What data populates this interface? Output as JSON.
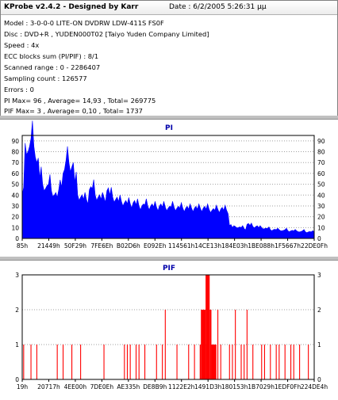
{
  "header": {
    "title": "KProbe v2.4.2 - Designed by Karr",
    "date": "Date : 6/2/2005 5:26:31 μμ"
  },
  "info_lines": [
    "Model : 3-0-0-0 LITE-ON DVDRW LDW-411S   FS0F",
    "Disc : DVD+R , YUDEN000T02 [Taiyo Yuden Company Limited]",
    "Speed : 4x",
    "ECC blocks sum (PI/PIF) : 8/1",
    "Scanned range : 0 - 2286407",
    "Sampling count : 126577",
    "Errors : 0",
    "PI Max= 96 , Average= 14,93 , Total= 269775",
    "PIF Max= 3 , Average= 0,10 , Total= 1737"
  ],
  "chart_data": [
    {
      "type": "area",
      "title": "PI",
      "color": "#0000ff",
      "ylim": [
        0,
        95
      ],
      "yticks": [
        "0",
        "10",
        "20",
        "30",
        "40",
        "50",
        "60",
        "70",
        "80",
        "90"
      ],
      "xticks": [
        "85h",
        "21449h",
        "50F29h",
        "7FE6Eh",
        "B02D6h",
        "E092Eh",
        "114561h",
        "14CE13h",
        "184E03h",
        "1BE088h",
        "1F5667h",
        "22DE0Fh"
      ],
      "grid": true,
      "profile": [
        [
          0,
          40
        ],
        [
          1,
          88
        ],
        [
          2,
          80
        ],
        [
          3,
          92
        ],
        [
          4,
          85
        ],
        [
          5,
          70
        ],
        [
          6,
          56
        ],
        [
          7,
          50
        ],
        [
          8,
          46
        ],
        [
          9,
          50
        ],
        [
          10,
          44
        ],
        [
          11,
          40
        ],
        [
          12,
          38
        ],
        [
          13,
          54
        ],
        [
          14,
          60
        ],
        [
          15,
          72
        ],
        [
          16,
          70
        ],
        [
          17,
          66
        ],
        [
          18,
          52
        ],
        [
          19,
          40
        ],
        [
          20,
          38
        ],
        [
          21,
          36
        ],
        [
          22,
          36
        ],
        [
          23,
          45
        ],
        [
          24,
          46
        ],
        [
          25,
          40
        ],
        [
          26,
          38
        ],
        [
          27,
          36
        ],
        [
          28,
          38
        ],
        [
          29,
          44
        ],
        [
          30,
          40
        ],
        [
          31,
          38
        ],
        [
          32,
          36
        ],
        [
          33,
          34
        ],
        [
          34,
          34
        ],
        [
          35,
          33
        ],
        [
          36,
          32
        ],
        [
          37,
          32
        ],
        [
          38,
          33
        ],
        [
          39,
          31
        ],
        [
          40,
          30
        ],
        [
          41,
          30
        ],
        [
          42,
          31
        ],
        [
          43,
          30
        ],
        [
          44,
          30
        ],
        [
          45,
          29
        ],
        [
          46,
          29
        ],
        [
          47,
          30
        ],
        [
          48,
          29
        ],
        [
          49,
          29
        ],
        [
          50,
          28
        ],
        [
          51,
          29
        ],
        [
          52,
          29
        ],
        [
          53,
          28
        ],
        [
          54,
          28
        ],
        [
          55,
          28
        ],
        [
          56,
          28
        ],
        [
          57,
          27
        ],
        [
          58,
          28
        ],
        [
          59,
          28
        ],
        [
          60,
          27
        ],
        [
          61,
          28
        ],
        [
          62,
          28
        ],
        [
          63,
          27
        ],
        [
          64,
          27
        ],
        [
          65,
          26
        ],
        [
          66,
          26
        ],
        [
          67,
          27
        ],
        [
          68,
          27
        ],
        [
          69,
          26
        ],
        [
          70,
          26
        ],
        [
          71,
          12
        ],
        [
          72,
          10
        ],
        [
          73,
          11
        ],
        [
          74,
          10
        ],
        [
          75,
          10
        ],
        [
          76,
          9
        ],
        [
          77,
          13
        ],
        [
          78,
          12
        ],
        [
          79,
          11
        ],
        [
          80,
          11
        ],
        [
          81,
          10
        ],
        [
          82,
          10
        ],
        [
          83,
          9
        ],
        [
          84,
          9
        ],
        [
          85,
          8
        ],
        [
          86,
          8
        ],
        [
          87,
          8
        ],
        [
          88,
          8
        ],
        [
          89,
          7
        ],
        [
          90,
          8
        ],
        [
          91,
          7
        ],
        [
          92,
          7
        ],
        [
          93,
          7
        ],
        [
          94,
          7
        ],
        [
          95,
          6
        ],
        [
          96,
          7
        ],
        [
          97,
          6
        ],
        [
          98,
          6
        ],
        [
          99,
          6
        ],
        [
          100,
          6
        ]
      ]
    },
    {
      "type": "bar",
      "title": "PIF",
      "color": "#ff0000",
      "ylim": [
        0,
        3
      ],
      "yticks": [
        "0",
        "1",
        "2",
        "3"
      ],
      "xticks": [
        "19h",
        "20717h",
        "4EE00h",
        "7DE0Eh",
        "AE335h",
        "DE8B9h",
        "1122E2h",
        "1491D3h",
        "180153h",
        "1B7029h",
        "1EDF0Fh",
        "224DE4h"
      ],
      "grid": true,
      "bars": [
        [
          0.5,
          1
        ],
        [
          3,
          1
        ],
        [
          5,
          1
        ],
        [
          12,
          1
        ],
        [
          14,
          1
        ],
        [
          17,
          1
        ],
        [
          20,
          1
        ],
        [
          28,
          1
        ],
        [
          35,
          1
        ],
        [
          36,
          1
        ],
        [
          37,
          1
        ],
        [
          39,
          1
        ],
        [
          40,
          1
        ],
        [
          42,
          1
        ],
        [
          46,
          1
        ],
        [
          48,
          1
        ],
        [
          49,
          2
        ],
        [
          53,
          1
        ],
        [
          57,
          1
        ],
        [
          59,
          1
        ],
        [
          63,
          1
        ],
        [
          67,
          2
        ],
        [
          68,
          1
        ],
        [
          71,
          1
        ],
        [
          72,
          1
        ],
        [
          73,
          2
        ],
        [
          75,
          1
        ],
        [
          76,
          1
        ],
        [
          77,
          2
        ],
        [
          79,
          1
        ],
        [
          82,
          1
        ],
        [
          83,
          1
        ],
        [
          85,
          1
        ],
        [
          87,
          1
        ],
        [
          88,
          1
        ],
        [
          90,
          1
        ],
        [
          92,
          1
        ],
        [
          93,
          1
        ],
        [
          95,
          1
        ],
        [
          98,
          1
        ]
      ],
      "blocks": [
        [
          61.2,
          62.8,
          2
        ],
        [
          62.8,
          64.2,
          3
        ],
        [
          64.2,
          64.8,
          2
        ],
        [
          64.8,
          66.5,
          1
        ],
        [
          60.8,
          61.2,
          1
        ]
      ]
    }
  ]
}
